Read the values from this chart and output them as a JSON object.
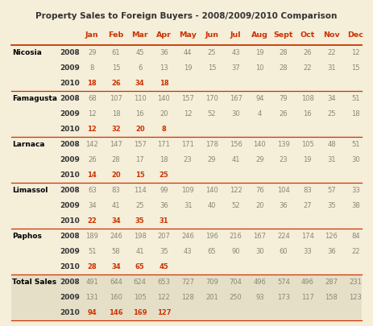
{
  "title": "Property Sales to Foreign Buyers - 2008/2009/2010 Comparison",
  "months": [
    "Jan",
    "Feb",
    "Mar",
    "Apr",
    "May",
    "Jun",
    "Jul",
    "Aug",
    "Sept",
    "Oct",
    "Nov",
    "Dec"
  ],
  "regions": [
    "Nicosia",
    "Famagusta",
    "Larnaca",
    "Limassol",
    "Paphos",
    "Total Sales"
  ],
  "data": {
    "Nicosia": {
      "2008": [
        29,
        61,
        45,
        36,
        44,
        25,
        43,
        19,
        28,
        26,
        22,
        12
      ],
      "2009": [
        8,
        15,
        6,
        13,
        19,
        15,
        37,
        10,
        28,
        22,
        31,
        15
      ],
      "2010": [
        18,
        26,
        34,
        18,
        null,
        null,
        null,
        null,
        null,
        null,
        null,
        null
      ]
    },
    "Famagusta": {
      "2008": [
        68,
        107,
        110,
        140,
        157,
        170,
        167,
        94,
        79,
        108,
        34,
        51
      ],
      "2009": [
        12,
        18,
        16,
        20,
        12,
        52,
        30,
        4,
        26,
        16,
        25,
        18
      ],
      "2010": [
        12,
        32,
        20,
        8,
        null,
        null,
        null,
        null,
        null,
        null,
        null,
        null
      ]
    },
    "Larnaca": {
      "2008": [
        142,
        147,
        157,
        171,
        171,
        178,
        156,
        140,
        139,
        105,
        48,
        51
      ],
      "2009": [
        26,
        28,
        17,
        18,
        23,
        29,
        41,
        29,
        23,
        19,
        31,
        30
      ],
      "2010": [
        14,
        20,
        15,
        25,
        null,
        null,
        null,
        null,
        null,
        null,
        null,
        null
      ]
    },
    "Limassol": {
      "2008": [
        63,
        83,
        114,
        99,
        109,
        140,
        122,
        76,
        104,
        83,
        57,
        33
      ],
      "2009": [
        34,
        41,
        25,
        36,
        31,
        40,
        52,
        20,
        36,
        27,
        35,
        38
      ],
      "2010": [
        22,
        34,
        35,
        31,
        null,
        null,
        null,
        null,
        null,
        null,
        null,
        null
      ]
    },
    "Paphos": {
      "2008": [
        189,
        246,
        198,
        207,
        246,
        196,
        216,
        167,
        224,
        174,
        126,
        84
      ],
      "2009": [
        51,
        58,
        41,
        35,
        43,
        65,
        90,
        30,
        60,
        33,
        36,
        22
      ],
      "2010": [
        28,
        34,
        65,
        45,
        null,
        null,
        null,
        null,
        null,
        null,
        null,
        null
      ]
    },
    "Total Sales": {
      "2008": [
        491,
        644,
        624,
        653,
        727,
        709,
        704,
        496,
        574,
        496,
        287,
        231
      ],
      "2009": [
        131,
        160,
        105,
        122,
        128,
        201,
        250,
        93,
        173,
        117,
        158,
        123
      ],
      "2010": [
        94,
        146,
        169,
        127,
        null,
        null,
        null,
        null,
        null,
        null,
        null,
        null
      ]
    }
  },
  "bg_color": "#f5eed9",
  "total_bg": "#e6dfc8",
  "title_color": "#333333",
  "month_color": "#cc3300",
  "year_color": "#333333",
  "val_2008_color": "#888877",
  "val_2009_color": "#888877",
  "val_2010_color": "#cc3300",
  "region_color": "#000000",
  "border_color": "#cc3300"
}
